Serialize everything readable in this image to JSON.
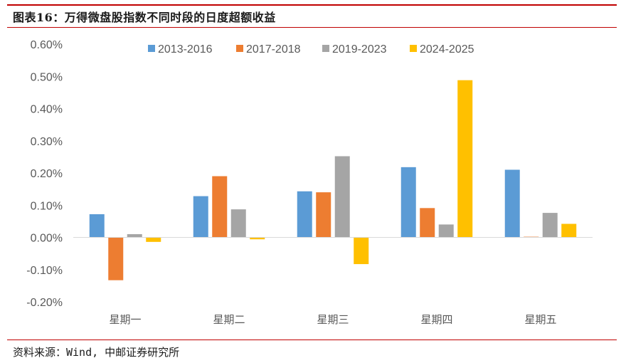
{
  "figure": {
    "title": "图表16：万得微盘股指数不同时段的日度超额收益",
    "source": "资料来源：Wind, 中邮证券研究所"
  },
  "colors": {
    "accent_rule": "#c00000",
    "series": [
      "#5b9bd5",
      "#ed7d31",
      "#a5a5a5",
      "#ffc000"
    ]
  },
  "chart_data": {
    "type": "bar",
    "title": "",
    "xlabel": "",
    "ylabel": "",
    "categories": [
      "星期一",
      "星期二",
      "星期三",
      "星期四",
      "星期五"
    ],
    "series": [
      {
        "name": "2013-2016",
        "values": [
          0.072,
          0.128,
          0.143,
          0.218,
          0.21
        ]
      },
      {
        "name": "2017-2018",
        "values": [
          -0.133,
          0.19,
          0.14,
          0.091,
          0.002
        ]
      },
      {
        "name": "2019-2023",
        "values": [
          0.01,
          0.087,
          0.252,
          0.04,
          0.076
        ]
      },
      {
        "name": "2024-2025",
        "values": [
          -0.014,
          -0.006,
          -0.083,
          0.488,
          0.042
        ]
      }
    ],
    "ylim": [
      -0.2,
      0.6
    ],
    "yticks": [
      "0.60%",
      "0.50%",
      "0.40%",
      "0.30%",
      "0.20%",
      "0.10%",
      "0.00%",
      "-0.10%",
      "-0.20%"
    ],
    "unit": "%",
    "legend_position": "top",
    "grid": false
  }
}
